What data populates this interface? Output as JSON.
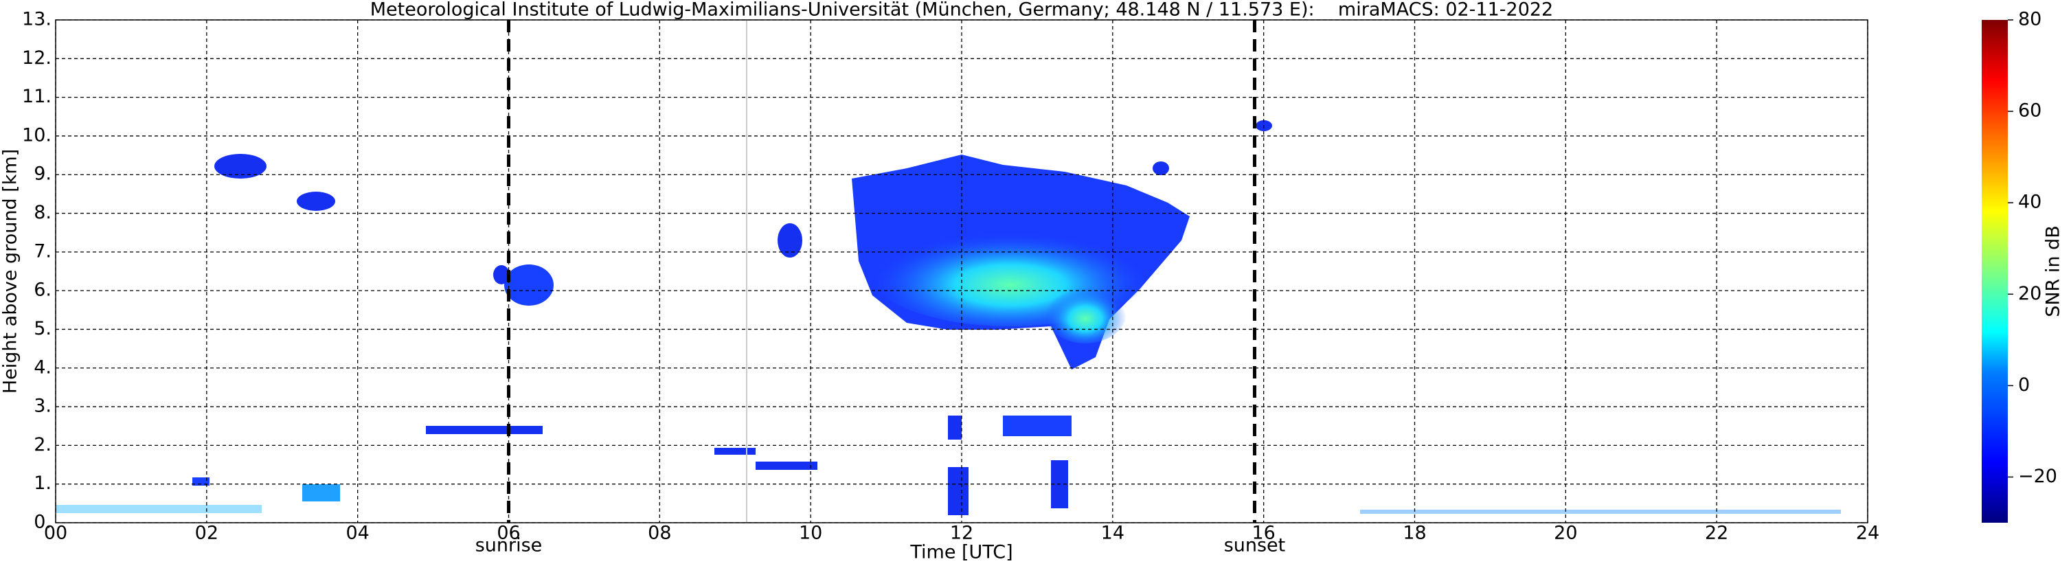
{
  "chart_data": {
    "type": "heatmap",
    "title": "Meteorological Institute of Ludwig-Maximilians-Universität (München, Germany; 48.148 N / 11.573 E):    miraMACS: 02-11-2022",
    "xlabel": "Time [UTC]",
    "ylabel": "Height above ground [km]",
    "xlim": [
      0,
      24
    ],
    "xticks": [
      {
        "value": 0,
        "label": "00"
      },
      {
        "value": 2,
        "label": "02"
      },
      {
        "value": 4,
        "label": "04"
      },
      {
        "value": 6,
        "label": "06"
      },
      {
        "value": 8,
        "label": "08"
      },
      {
        "value": 10,
        "label": "10"
      },
      {
        "value": 12,
        "label": "12"
      },
      {
        "value": 14,
        "label": "14"
      },
      {
        "value": 16,
        "label": "16"
      },
      {
        "value": 18,
        "label": "18"
      },
      {
        "value": 20,
        "label": "20"
      },
      {
        "value": 22,
        "label": "22"
      },
      {
        "value": 24,
        "label": "24"
      }
    ],
    "ylim": [
      0,
      13
    ],
    "yticks": [
      {
        "value": 0,
        "label": "0."
      },
      {
        "value": 1,
        "label": "1."
      },
      {
        "value": 2,
        "label": "2."
      },
      {
        "value": 3,
        "label": "3."
      },
      {
        "value": 4,
        "label": "4."
      },
      {
        "value": 5,
        "label": "5."
      },
      {
        "value": 6,
        "label": "6."
      },
      {
        "value": 7,
        "label": "7."
      },
      {
        "value": 8,
        "label": "8."
      },
      {
        "value": 9,
        "label": "9."
      },
      {
        "value": 10,
        "label": "10."
      },
      {
        "value": 11,
        "label": "11."
      },
      {
        "value": 12,
        "label": "12."
      },
      {
        "value": 13,
        "label": "13."
      }
    ],
    "grid": true,
    "annotations": [
      {
        "text": "sunrise",
        "x": 6.0
      },
      {
        "text": "sunset",
        "x": 15.88
      }
    ],
    "colorbar": {
      "label": "SNR in dB",
      "clim": [
        -30,
        80
      ],
      "ticks": [
        {
          "value": -20,
          "label": "−20"
        },
        0,
        20,
        40,
        60,
        80
      ]
    }
  }
}
